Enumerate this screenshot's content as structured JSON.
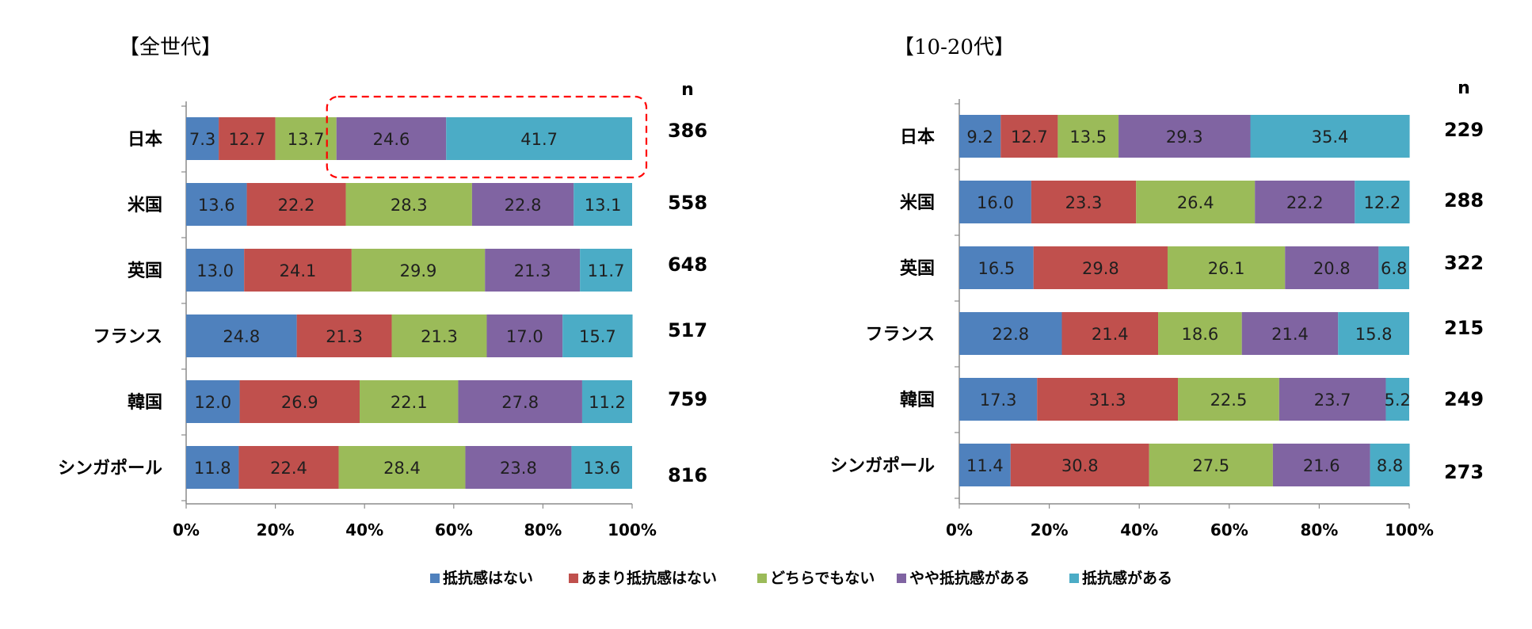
{
  "chart_data": [
    {
      "type": "bar",
      "orientation": "horizontal",
      "stacked": true,
      "title": "【全世代】",
      "categories": [
        "日本",
        "米国",
        "英国",
        "フランス",
        "韓国",
        "シンガポール"
      ],
      "series": [
        {
          "name": "抵抗感はない",
          "values": [
            7.3,
            13.6,
            13.0,
            24.8,
            12.0,
            11.8
          ]
        },
        {
          "name": "あまり抵抗感はない",
          "values": [
            12.7,
            22.2,
            24.1,
            21.3,
            26.9,
            22.4
          ]
        },
        {
          "name": "どちらでもない",
          "values": [
            13.7,
            28.3,
            29.9,
            21.3,
            22.1,
            28.4
          ]
        },
        {
          "name": "やや抵抗感がある",
          "values": [
            24.6,
            22.8,
            21.3,
            17.0,
            27.8,
            23.8
          ]
        },
        {
          "name": "抵抗感がある",
          "values": [
            41.7,
            13.1,
            11.7,
            15.7,
            11.2,
            13.6
          ]
        }
      ],
      "value_labels": [
        [
          "7.3",
          "13.6",
          "13.0",
          "24.8",
          "12.0",
          "11.8"
        ],
        [
          "12.7",
          "22.2",
          "24.1",
          "21.3",
          "26.9",
          "22.4"
        ],
        [
          "13.7",
          "28.3",
          "29.9",
          "21.3",
          "22.1",
          "28.4"
        ],
        [
          "24.6",
          "22.8",
          "21.3",
          "17.0",
          "27.8",
          "23.8"
        ],
        [
          "41.7",
          "13.1",
          "11.7",
          "15.7",
          "11.2",
          "13.6"
        ]
      ],
      "n_header": "n",
      "n": [
        "386",
        "558",
        "648",
        "517",
        "759",
        "816"
      ],
      "xlim": [
        0,
        100
      ],
      "x_ticks": [
        "0%",
        "20%",
        "40%",
        "60%",
        "80%",
        "100%"
      ],
      "highlight": {
        "category": "日本",
        "series": [
          "やや抵抗感がある",
          "抵抗感がある"
        ],
        "style": "red-dashed-box"
      }
    },
    {
      "type": "bar",
      "orientation": "horizontal",
      "stacked": true,
      "title": "【10-20代】",
      "categories": [
        "日本",
        "米国",
        "英国",
        "フランス",
        "韓国",
        "シンガポール"
      ],
      "series": [
        {
          "name": "抵抗感はない",
          "values": [
            9.2,
            16.0,
            16.5,
            22.8,
            17.3,
            11.4
          ]
        },
        {
          "name": "あまり抵抗感はない",
          "values": [
            12.7,
            23.3,
            29.8,
            21.4,
            31.3,
            30.8
          ]
        },
        {
          "name": "どちらでもない",
          "values": [
            13.5,
            26.4,
            26.1,
            18.6,
            22.5,
            27.5
          ]
        },
        {
          "name": "やや抵抗感がある",
          "values": [
            29.3,
            22.2,
            20.8,
            21.4,
            23.7,
            21.6
          ]
        },
        {
          "name": "抵抗感がある",
          "values": [
            35.4,
            12.2,
            6.8,
            15.8,
            5.2,
            8.8
          ]
        }
      ],
      "value_labels": [
        [
          "9.2",
          "16.0",
          "16.5",
          "22.8",
          "17.3",
          "11.4"
        ],
        [
          "12.7",
          "23.3",
          "29.8",
          "21.4",
          "31.3",
          "30.8"
        ],
        [
          "13.5",
          "26.4",
          "26.1",
          "18.6",
          "22.5",
          "27.5"
        ],
        [
          "29.3",
          "22.2",
          "20.8",
          "21.4",
          "23.7",
          "21.6"
        ],
        [
          "35.4",
          "12.2",
          "6.8",
          "15.8",
          "5.2",
          "8.8"
        ]
      ],
      "n_header": "n",
      "n": [
        "229",
        "288",
        "322",
        "215",
        "249",
        "273"
      ],
      "xlim": [
        0,
        100
      ],
      "x_ticks": [
        "0%",
        "20%",
        "40%",
        "60%",
        "80%",
        "100%"
      ]
    }
  ],
  "legend": {
    "placement": "bottom-center",
    "items": [
      "抵抗感はない",
      "あまり抵抗感はない",
      "どちらでもない",
      "やや抵抗感がある",
      "抵抗感がある"
    ]
  },
  "colors": {
    "series": [
      "#4F81BD",
      "#C0504D",
      "#9BBB59",
      "#8064A2",
      "#4BACC6"
    ],
    "highlight": "#FF0000"
  }
}
